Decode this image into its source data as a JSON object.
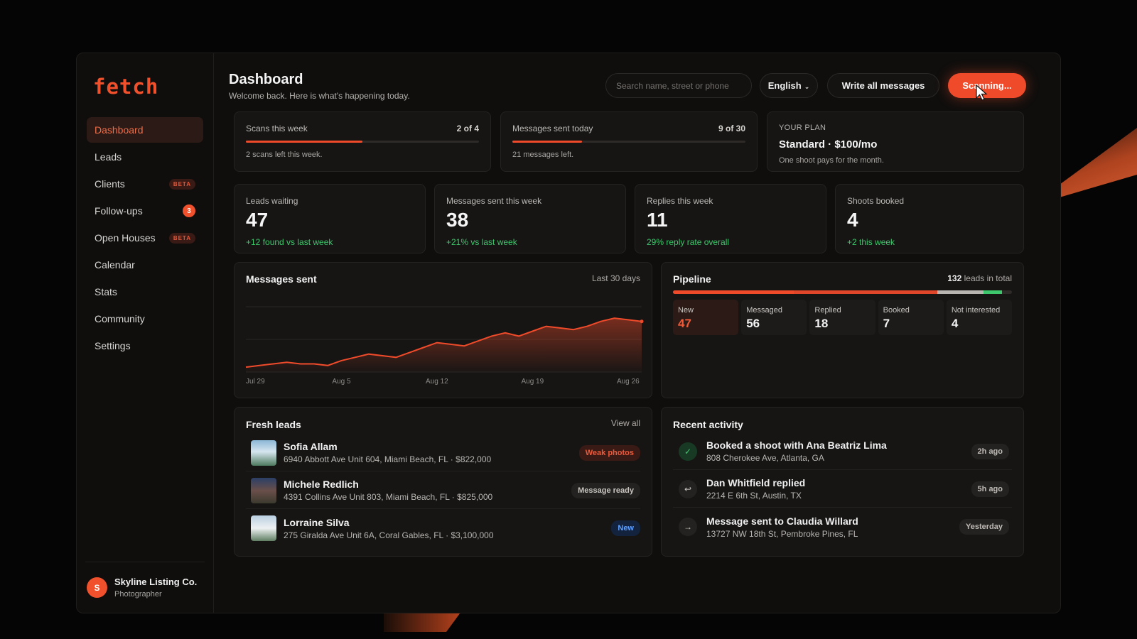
{
  "brand": {
    "logo": "fetch",
    "accent": "#ef4b2b"
  },
  "sidebar": {
    "items": [
      {
        "label": "Dashboard",
        "active": true
      },
      {
        "label": "Leads"
      },
      {
        "label": "Clients",
        "badge": "BETA"
      },
      {
        "label": "Follow-ups",
        "count": "3"
      },
      {
        "label": "Open Houses",
        "badge": "BETA"
      },
      {
        "label": "Calendar"
      },
      {
        "label": "Stats"
      },
      {
        "label": "Community"
      },
      {
        "label": "Settings"
      }
    ],
    "account": {
      "initial": "S",
      "name": "Skyline Listing Co.",
      "role": "Photographer"
    }
  },
  "header": {
    "title": "Dashboard",
    "subtitle": "Welcome back. Here is what's happening today.",
    "search_placeholder": "Search name, street or phone",
    "language": "English",
    "write_all_label": "Write all messages",
    "scan_label": "Scanning..."
  },
  "usage": {
    "scans": {
      "label": "Scans this week",
      "fraction": "2 of 4",
      "progress": 0.5,
      "note": "2 scans left this week."
    },
    "messages": {
      "label": "Messages sent today",
      "fraction": "9 of 30",
      "progress": 0.3,
      "note": "21 messages left."
    },
    "plan": {
      "kicker": "YOUR PLAN",
      "name": "Standard · $100/mo",
      "note": "One shoot pays for the month."
    }
  },
  "stats": [
    {
      "label": "Leads waiting",
      "value": "47",
      "delta": "+12 found vs last week"
    },
    {
      "label": "Messages sent this week",
      "value": "38",
      "delta": "+21% vs last week"
    },
    {
      "label": "Replies this week",
      "value": "11",
      "delta": "29% reply rate overall"
    },
    {
      "label": "Shoots booked",
      "value": "4",
      "delta": "+2 this week"
    }
  ],
  "messages_chart": {
    "title": "Messages sent",
    "range": "Last 30 days"
  },
  "chart_data": {
    "type": "area",
    "title": "Messages sent",
    "x": [
      "Jul 29",
      "Jul 30",
      "Jul 31",
      "Aug 1",
      "Aug 2",
      "Aug 3",
      "Aug 4",
      "Aug 5",
      "Aug 6",
      "Aug 7",
      "Aug 8",
      "Aug 9",
      "Aug 10",
      "Aug 11",
      "Aug 12",
      "Aug 13",
      "Aug 14",
      "Aug 15",
      "Aug 16",
      "Aug 17",
      "Aug 18",
      "Aug 19",
      "Aug 20",
      "Aug 21",
      "Aug 22",
      "Aug 23",
      "Aug 24",
      "Aug 25",
      "Aug 26",
      "Aug 27"
    ],
    "xticks": [
      "Jul 29",
      "Aug 5",
      "Aug 12",
      "Aug 19",
      "Aug 26"
    ],
    "series": [
      {
        "values": [
          3,
          4,
          5,
          6,
          5,
          5,
          4,
          7,
          9,
          11,
          10,
          9,
          12,
          15,
          18,
          17,
          16,
          19,
          22,
          24,
          22,
          25,
          28,
          27,
          26,
          28,
          31,
          33,
          32,
          31
        ]
      }
    ],
    "ylim": [
      0,
      40
    ],
    "grid": true,
    "color": "#ef4b2b"
  },
  "pipeline": {
    "title": "Pipeline",
    "total_value": "132",
    "total_suffix": "leads in total",
    "stages": [
      {
        "label": "New",
        "value": "47",
        "color": "#ef4b2b"
      },
      {
        "label": "Messaged",
        "value": "56",
        "color": "#e0462a"
      },
      {
        "label": "Replied",
        "value": "18",
        "color": "#b8b5b1"
      },
      {
        "label": "Booked",
        "value": "7",
        "color": "#3ec66c"
      },
      {
        "label": "Not interested",
        "value": "4",
        "color": "#2d2a28"
      }
    ]
  },
  "fresh_leads": {
    "title": "Fresh leads",
    "view_all": "View all",
    "items": [
      {
        "name": "Sofia Allam",
        "address": "6940 Abbott Ave Unit 604, Miami Beach, FL · $822,000",
        "tag": "Weak photos"
      },
      {
        "name": "Michele Redlich",
        "address": "4391 Collins Ave Unit 803, Miami Beach, FL · $825,000",
        "tag": "Message ready"
      },
      {
        "name": "Lorraine Silva",
        "address": "275 Giralda Ave Unit 6A, Coral Gables, FL · $3,100,000",
        "tag": "New"
      }
    ]
  },
  "recent_activity": {
    "title": "Recent activity",
    "items": [
      {
        "title": "Booked a shoot with Ana Beatriz Lima",
        "sub": "808 Cherokee Ave, Atlanta, GA",
        "time": "2h ago",
        "icon": "check-icon"
      },
      {
        "title": "Dan Whitfield replied",
        "sub": "2214 E 6th St, Austin, TX",
        "time": "5h ago",
        "icon": "reply-icon"
      },
      {
        "title": "Message sent to Claudia Willard",
        "sub": "13727 NW 18th St, Pembroke Pines, FL",
        "time": "Yesterday",
        "icon": "arrow-right-icon"
      }
    ]
  }
}
